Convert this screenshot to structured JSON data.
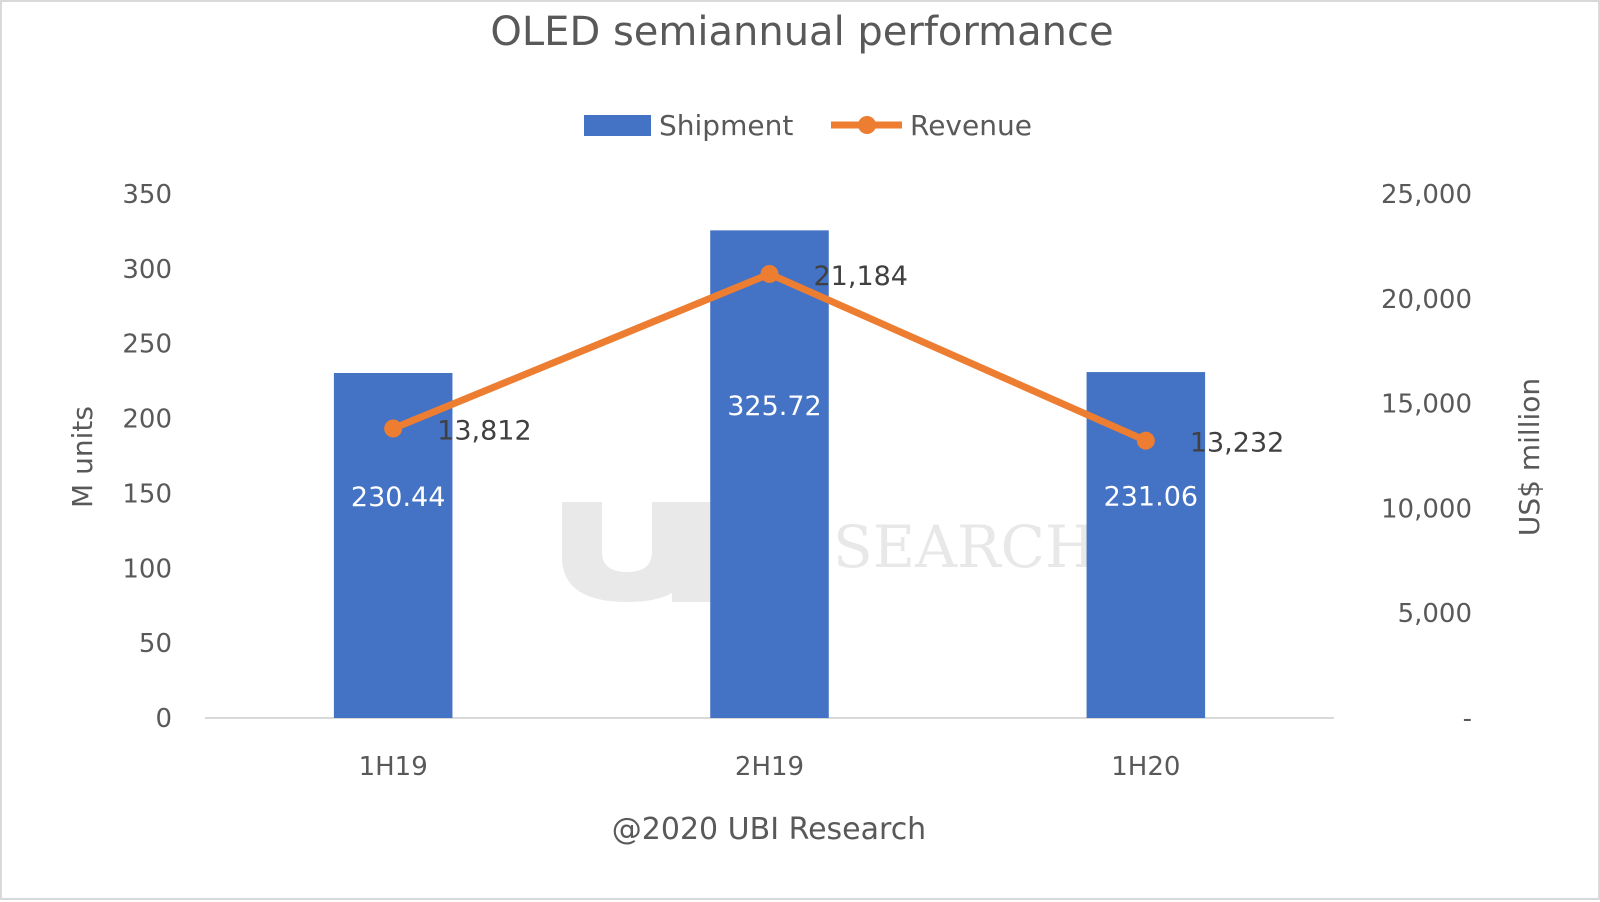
{
  "chart_data": {
    "type": "bar",
    "title": "OLED semiannual performance",
    "categories": [
      "1H19",
      "2H19",
      "1H20"
    ],
    "series": [
      {
        "name": "Shipment",
        "type": "bar",
        "axis": "left",
        "values": [
          230.44,
          325.72,
          231.06
        ],
        "color": "#4472C4",
        "labels": [
          "230.44",
          "325.72",
          "231.06"
        ]
      },
      {
        "name": "Revenue",
        "type": "line",
        "axis": "right",
        "values": [
          13812,
          21184,
          13232
        ],
        "color": "#ED7D31",
        "labels": [
          "13,812",
          "21,184",
          "13,232"
        ]
      }
    ],
    "ylabel": "M units",
    "y2label": "US$ million",
    "ylim": [
      0,
      350
    ],
    "y2lim": [
      0,
      25000
    ],
    "yticks": [
      "0",
      "50",
      "100",
      "150",
      "200",
      "250",
      "300",
      "350"
    ],
    "y2ticks": [
      "-",
      "5,000",
      "10,000",
      "15,000",
      "20,000",
      "25,000"
    ],
    "legend": "top-center",
    "grid": false
  },
  "credit": "@2020 UBI Research",
  "watermark": "RESEARCH",
  "colors": {
    "text": "#595959",
    "axis_line": "#d9d9d9"
  }
}
